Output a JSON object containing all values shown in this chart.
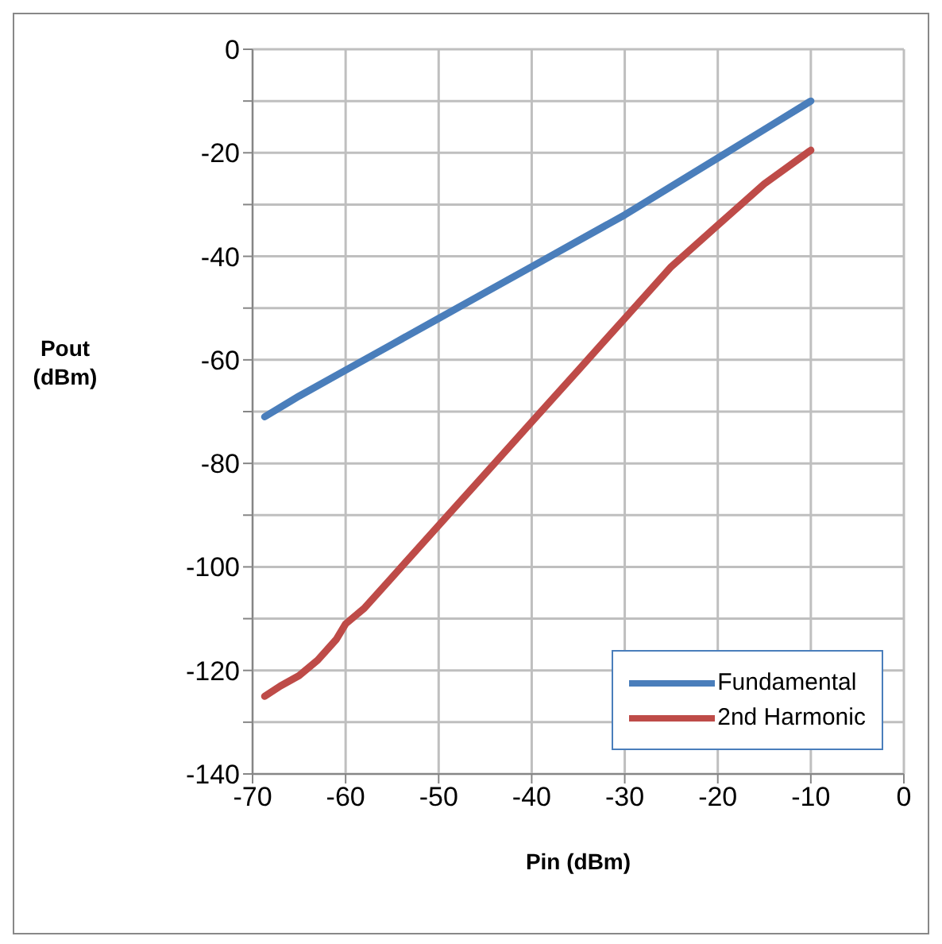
{
  "chart_data": {
    "type": "line",
    "xlabel": "Pin (dBm)",
    "ylabel": "Pout (dBm)",
    "xlim": [
      -70,
      0
    ],
    "xticks": [
      -70,
      -60,
      -50,
      -40,
      -30,
      -20,
      -10,
      0
    ],
    "ylim": [
      -140,
      0
    ],
    "yticks": [
      -140,
      {
        "value": -130,
        "label": null
      },
      -120,
      {
        "value": -110,
        "label": null
      },
      -100,
      {
        "value": -90,
        "label": null
      },
      -80,
      {
        "value": -70,
        "label": null
      },
      -60,
      {
        "value": -50,
        "label": null
      },
      -40,
      {
        "value": -30,
        "label": null
      },
      -20,
      {
        "value": -10,
        "label": null
      },
      0
    ],
    "grid": true,
    "legend": "bottom right",
    "marker": "none",
    "line_style": "solid",
    "series": [
      {
        "name": "Fundamental",
        "color": "#4a7ebb",
        "x": [
          -68.7,
          -65,
          -60,
          -55,
          -50,
          -45,
          -40,
          -35,
          -30,
          -25,
          -20,
          -15,
          -10
        ],
        "values": [
          -71,
          -67,
          -62,
          -57,
          -52,
          -47,
          -42,
          -37,
          -32,
          -26.5,
          -21,
          -15.5,
          -10
        ]
      },
      {
        "name": "2nd Harmonic",
        "color": "#be4b48",
        "x": [
          -68.7,
          -67,
          -65,
          -63,
          -61,
          -60,
          -58,
          -55,
          -50,
          -45,
          -40,
          -35,
          -30,
          -25,
          -20,
          -15,
          -10
        ],
        "values": [
          -125,
          -123,
          -121,
          -118,
          -114,
          -111,
          -108,
          -102,
          -92,
          -82,
          -72,
          -62,
          -52,
          -42,
          -34,
          -26,
          -19.5
        ]
      }
    ]
  }
}
